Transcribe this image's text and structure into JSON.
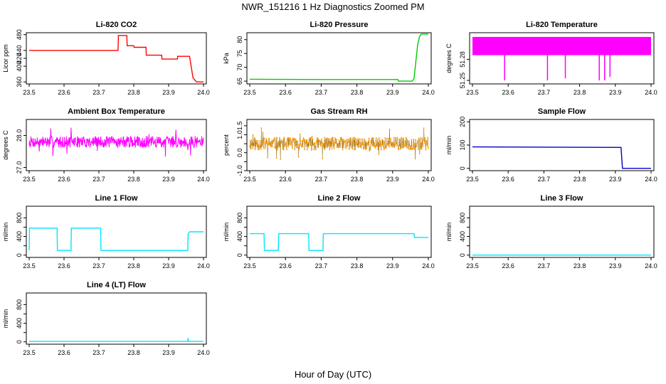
{
  "figure": {
    "title": "NWR_151216  1 Hz Diagnostics Zoomed PM",
    "xlabel": "Hour of Day (UTC)"
  },
  "chart_data": [
    {
      "id": "co2",
      "type": "line",
      "title": "Li-820 CO2",
      "ylabel": "Licor ppm",
      "color": "#ff0000",
      "xlim": [
        23.5,
        24.0
      ],
      "ylim": [
        355,
        485
      ],
      "xticks": [
        23.5,
        23.6,
        23.7,
        23.8,
        23.9,
        24.0
      ],
      "xtick_labels": [
        "23.5",
        "23.6",
        "23.7",
        "23.8",
        "23.9",
        "24.0"
      ],
      "yticks": [
        360,
        400,
        420,
        440,
        480
      ],
      "ytick_labels": [
        "360",
        "400",
        "420",
        "440",
        "480"
      ],
      "series": [
        {
          "name": "Li-820 CO2",
          "x": [
            23.5,
            23.755,
            23.756,
            23.78,
            23.781,
            23.8,
            23.801,
            23.835,
            23.836,
            23.88,
            23.881,
            23.925,
            23.926,
            23.96,
            23.97,
            23.98,
            24.0
          ],
          "y": [
            440,
            440,
            478,
            478,
            452,
            452,
            448,
            448,
            428,
            428,
            418,
            418,
            425,
            425,
            370,
            360,
            360
          ]
        }
      ]
    },
    {
      "id": "pressure",
      "type": "line",
      "title": "Li-820 Pressure",
      "ylabel": "kPa",
      "color": "#00cc00",
      "xlim": [
        23.5,
        24.0
      ],
      "ylim": [
        64,
        82.5
      ],
      "xticks": [
        23.5,
        23.6,
        23.7,
        23.8,
        23.9,
        24.0
      ],
      "xtick_labels": [
        "23.5",
        "23.6",
        "23.7",
        "23.8",
        "23.9",
        "24.0"
      ],
      "yticks": [
        65,
        70,
        75,
        80
      ],
      "ytick_labels": [
        "65",
        "70",
        "75",
        "80"
      ],
      "series": [
        {
          "name": "Li-820 Pressure",
          "x": [
            23.5,
            23.7,
            23.9,
            23.915,
            23.916,
            23.955,
            23.96,
            23.965,
            23.97,
            23.975,
            23.98,
            24.0
          ],
          "y": [
            65.7,
            65.6,
            65.6,
            65.6,
            65.0,
            65.0,
            66.0,
            72.0,
            78.0,
            81.0,
            82.0,
            82.0
          ]
        }
      ]
    },
    {
      "id": "licor_temp",
      "type": "line",
      "title": "Li-820 Temperature",
      "ylabel": "degrees C",
      "color": "#ff00ff",
      "xlim": [
        23.5,
        24.0
      ],
      "ylim": [
        51.245,
        51.318
      ],
      "xticks": [
        23.5,
        23.6,
        23.7,
        23.8,
        23.9,
        24.0
      ],
      "xtick_labels": [
        "23.5",
        "23.6",
        "23.7",
        "23.8",
        "23.9",
        "24.0"
      ],
      "yticks": [
        51.25,
        51.28
      ],
      "ytick_labels": [
        "51.25",
        "51.28"
      ],
      "band": [
        51.286,
        51.312
      ],
      "spikes_down": [
        {
          "x": 23.59,
          "y": 51.25
        },
        {
          "x": 23.71,
          "y": 51.25
        },
        {
          "x": 23.76,
          "y": 51.253
        },
        {
          "x": 23.855,
          "y": 51.25
        },
        {
          "x": 23.87,
          "y": 51.25
        },
        {
          "x": 23.885,
          "y": 51.255
        }
      ]
    },
    {
      "id": "box_temp",
      "type": "line",
      "title": "Ambient Box Temperature",
      "ylabel": "degrees C",
      "color": "#ff00ff",
      "xlim": [
        23.5,
        24.0
      ],
      "ylim": [
        26.9,
        28.5
      ],
      "xticks": [
        23.5,
        23.6,
        23.7,
        23.8,
        23.9,
        24.0
      ],
      "xtick_labels": [
        "23.5",
        "23.6",
        "23.7",
        "23.8",
        "23.9",
        "24.0"
      ],
      "yticks": [
        27.0,
        28.0
      ],
      "ytick_labels": [
        "27.0",
        "28.0"
      ],
      "noise": {
        "center": 27.8,
        "amplitude": 0.18,
        "points": 500,
        "seed": 7
      }
    },
    {
      "id": "rh",
      "type": "scatter",
      "title": "Gas Stream RH",
      "ylabel": "percent",
      "color": "#ff9900",
      "xlim": [
        23.5,
        24.0
      ],
      "ylim": [
        -1.0,
        1.85
      ],
      "xticks": [
        23.5,
        23.6,
        23.7,
        23.8,
        23.9,
        24.0
      ],
      "xtick_labels": [
        "23.5",
        "23.6",
        "23.7",
        "23.8",
        "23.9",
        "24.0"
      ],
      "yticks": [
        -1.0,
        -0.5,
        0.0,
        0.5,
        1.0,
        1.5
      ],
      "ytick_labels": [
        "-1.0",
        "",
        "0.0",
        "",
        "1.0",
        "1.5"
      ],
      "noise": {
        "center": 0.5,
        "amplitude": 0.35,
        "points": 600,
        "seed": 11
      }
    },
    {
      "id": "sample_flow",
      "type": "line",
      "title": "Sample Flow",
      "ylabel": "ml/min",
      "color": "#0000cc",
      "xlim": [
        23.5,
        24.0
      ],
      "ylim": [
        -10,
        210
      ],
      "xticks": [
        23.5,
        23.6,
        23.7,
        23.8,
        23.9,
        24.0
      ],
      "xtick_labels": [
        "23.5",
        "23.6",
        "23.7",
        "23.8",
        "23.9",
        "24.0"
      ],
      "yticks": [
        0,
        100,
        200
      ],
      "ytick_labels": [
        "0",
        "100",
        "200"
      ],
      "series": [
        {
          "name": "Sample Flow",
          "x": [
            23.5,
            23.915,
            23.916,
            23.92,
            24.0
          ],
          "y": [
            92,
            90,
            90,
            0,
            0
          ]
        }
      ]
    },
    {
      "id": "line1",
      "type": "line",
      "title": "Line 1 Flow",
      "ylabel": "ml/min",
      "color": "#00e5ff",
      "xlim": [
        23.5,
        24.0
      ],
      "ylim": [
        -50,
        1050
      ],
      "xticks": [
        23.5,
        23.6,
        23.7,
        23.8,
        23.9,
        24.0
      ],
      "xtick_labels": [
        "23.5",
        "23.6",
        "23.7",
        "23.8",
        "23.9",
        "24.0"
      ],
      "yticks": [
        0,
        200,
        400,
        600,
        800
      ],
      "ytick_labels": [
        "0",
        "",
        "400",
        "",
        "800"
      ],
      "series": [
        {
          "name": "Line 1 Flow",
          "x": [
            23.5,
            23.501,
            23.5,
            23.58,
            23.581,
            23.62,
            23.621,
            23.705,
            23.706,
            23.75,
            23.955,
            23.956,
            23.96,
            24.0
          ],
          "y": [
            100,
            580,
            580,
            580,
            100,
            100,
            580,
            580,
            100,
            100,
            100,
            460,
            500,
            500
          ]
        }
      ]
    },
    {
      "id": "line2",
      "type": "line",
      "title": "Line 2 Flow",
      "ylabel": "ml/min",
      "color": "#00e5ff",
      "xlim": [
        23.5,
        24.0
      ],
      "ylim": [
        -50,
        1050
      ],
      "xticks": [
        23.5,
        23.6,
        23.7,
        23.8,
        23.9,
        24.0
      ],
      "xtick_labels": [
        "23.5",
        "23.6",
        "23.7",
        "23.8",
        "23.9",
        "24.0"
      ],
      "yticks": [
        0,
        200,
        400,
        600,
        800
      ],
      "ytick_labels": [
        "0",
        "",
        "400",
        "",
        "800"
      ],
      "series": [
        {
          "name": "Line 2 Flow",
          "x": [
            23.5,
            23.54,
            23.541,
            23.58,
            23.581,
            23.665,
            23.666,
            23.705,
            23.706,
            23.96,
            23.961,
            24.0
          ],
          "y": [
            460,
            460,
            100,
            100,
            460,
            460,
            100,
            100,
            460,
            460,
            380,
            380
          ]
        }
      ]
    },
    {
      "id": "line3",
      "type": "line",
      "title": "Line 3 Flow",
      "ylabel": "ml/min",
      "color": "#00e5ff",
      "xlim": [
        23.5,
        24.0
      ],
      "ylim": [
        -50,
        1050
      ],
      "xticks": [
        23.5,
        23.6,
        23.7,
        23.8,
        23.9,
        24.0
      ],
      "xtick_labels": [
        "23.5",
        "23.6",
        "23.7",
        "23.8",
        "23.9",
        "24.0"
      ],
      "yticks": [
        0,
        200,
        400,
        600,
        800
      ],
      "ytick_labels": [
        "0",
        "",
        "400",
        "",
        "800"
      ],
      "series": [
        {
          "name": "Line 3 Flow",
          "x": [
            23.5,
            24.0
          ],
          "y": [
            0,
            0
          ]
        }
      ]
    },
    {
      "id": "line4",
      "type": "line",
      "title": "Line 4 (LT) Flow",
      "ylabel": "ml/min",
      "color": "#00e5ff",
      "xlim": [
        23.5,
        24.0
      ],
      "ylim": [
        -50,
        1050
      ],
      "xticks": [
        23.5,
        23.6,
        23.7,
        23.8,
        23.9,
        24.0
      ],
      "xtick_labels": [
        "23.5",
        "23.6",
        "23.7",
        "23.8",
        "23.9",
        "24.0"
      ],
      "yticks": [
        0,
        200,
        400,
        600,
        800
      ],
      "ytick_labels": [
        "0",
        "",
        "400",
        "",
        "800"
      ],
      "series": [
        {
          "name": "Line 4 (LT) Flow",
          "x": [
            23.5,
            23.955,
            23.956,
            23.957,
            23.958,
            24.0
          ],
          "y": [
            10,
            10,
            80,
            10,
            10,
            10
          ]
        }
      ]
    }
  ]
}
